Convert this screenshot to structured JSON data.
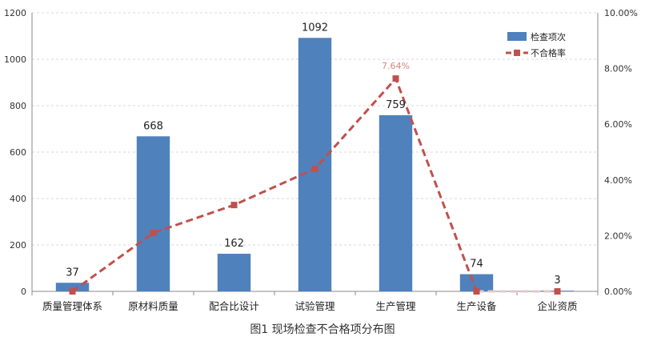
{
  "caption": "图1 现场检查不合格项分布图",
  "chart_data": {
    "type": "bar",
    "categories": [
      "质量管理体系",
      "原材料质量",
      "配合比设计",
      "试验管理",
      "生产管理",
      "生产设备",
      "企业资质"
    ],
    "series": [
      {
        "name": "检查项次",
        "type": "bar",
        "axis": "left",
        "values": [
          37,
          668,
          162,
          1092,
          759,
          74,
          3
        ],
        "labels": [
          "37",
          "668",
          "162",
          "1092",
          "759",
          "74",
          "3"
        ],
        "color": "#4f81bd"
      },
      {
        "name": "不合格率",
        "type": "line",
        "axis": "right",
        "values": [
          0.0,
          2.1,
          3.1,
          4.4,
          7.64,
          0.0,
          0.0
        ],
        "color": "#c0504d",
        "peak_label": "7.64%"
      }
    ],
    "y_left": {
      "min": 0,
      "max": 1200,
      "ticks": [
        "0",
        "200",
        "400",
        "600",
        "800",
        "1000",
        "1200"
      ]
    },
    "y_right": {
      "min": 0,
      "max": 10,
      "ticks": [
        "0.00%",
        "2.00%",
        "4.00%",
        "6.00%",
        "8.00%",
        "10.00%"
      ]
    },
    "grid": true,
    "legend_position": "top-right"
  }
}
